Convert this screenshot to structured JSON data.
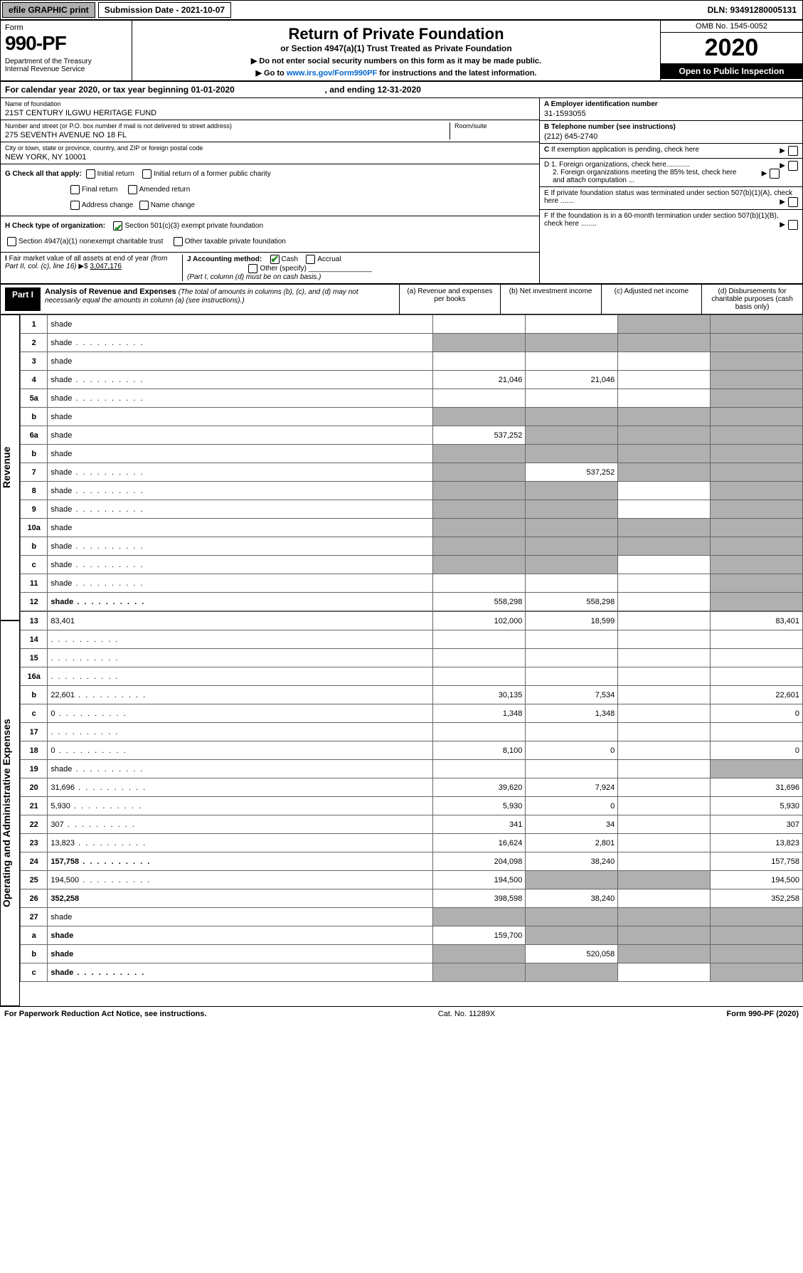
{
  "topbar": {
    "efile": "efile GRAPHIC print",
    "submission": "Submission Date - 2021-10-07",
    "dln": "DLN: 93491280005131"
  },
  "header": {
    "form_label": "Form",
    "form_num": "990-PF",
    "dept": "Department of the Treasury\nInternal Revenue Service",
    "title": "Return of Private Foundation",
    "subtitle": "or Section 4947(a)(1) Trust Treated as Private Foundation",
    "note1": "▶ Do not enter social security numbers on this form as it may be made public.",
    "note2_pre": "▶ Go to ",
    "note2_link": "www.irs.gov/Form990PF",
    "note2_post": " for instructions and the latest information.",
    "omb": "OMB No. 1545-0052",
    "year": "2020",
    "open": "Open to Public Inspection"
  },
  "cal": {
    "text_pre": "For calendar year 2020, or tax year beginning ",
    "begin": "01-01-2020",
    "mid": " , and ending ",
    "end": "12-31-2020"
  },
  "info": {
    "name_lbl": "Name of foundation",
    "name_val": "21ST CENTURY ILGWU HERITAGE FUND",
    "addr_lbl": "Number and street (or P.O. box number if mail is not delivered to street address)",
    "addr_val": "275 SEVENTH AVENUE NO 18 FL",
    "room_lbl": "Room/suite",
    "city_lbl": "City or town, state or province, country, and ZIP or foreign postal code",
    "city_val": "NEW YORK, NY  10001",
    "a_lbl": "A Employer identification number",
    "a_val": "31-1593055",
    "b_lbl": "B Telephone number (see instructions)",
    "b_val": "(212) 645-2740",
    "c_lbl": "C If exemption application is pending, check here",
    "g_lbl": "G Check all that apply:",
    "g_items": [
      "Initial return",
      "Initial return of a former public charity",
      "Final return",
      "Amended return",
      "Address change",
      "Name change"
    ],
    "d1": "D 1. Foreign organizations, check here............",
    "d2": "2. Foreign organizations meeting the 85% test, check here and attach computation ...",
    "h_lbl": "H Check type of organization:",
    "h1": "Section 501(c)(3) exempt private foundation",
    "h2": "Section 4947(a)(1) nonexempt charitable trust",
    "h3": "Other taxable private foundation",
    "e_lbl": "E  If private foundation status was terminated under section 507(b)(1)(A), check here .......",
    "i_lbl": "I Fair market value of all assets at end of year (from Part II, col. (c), line 16) ▶$  ",
    "i_val": "3,047,176",
    "j_lbl": "J Accounting method:",
    "j_cash": "Cash",
    "j_accrual": "Accrual",
    "j_other": "Other (specify)",
    "j_note": "(Part I, column (d) must be on cash basis.)",
    "f_lbl": "F  If the foundation is in a 60-month termination under section 507(b)(1)(B), check here ........"
  },
  "part1": {
    "label": "Part I",
    "title": "Analysis of Revenue and Expenses",
    "subtitle": "(The total of amounts in columns (b), (c), and (d) may not necessarily equal the amounts in column (a) (see instructions).)",
    "col_a": "(a)   Revenue and expenses per books",
    "col_b": "(b)  Net investment income",
    "col_c": "(c)  Adjusted net income",
    "col_d": "(d)  Disbursements for charitable purposes (cash basis only)"
  },
  "sections": {
    "revenue": "Revenue",
    "expenses": "Operating and Administrative Expenses"
  },
  "rows": [
    {
      "n": "1",
      "d": "shade",
      "a": "",
      "b": "",
      "c": "shade"
    },
    {
      "n": "2",
      "d": "shade",
      "a": "shade",
      "b": "shade",
      "c": "shade",
      "dots": 1
    },
    {
      "n": "3",
      "d": "shade",
      "a": "",
      "b": "",
      "c": ""
    },
    {
      "n": "4",
      "d": "shade",
      "a": "21,046",
      "b": "21,046",
      "c": "",
      "dots": 1
    },
    {
      "n": "5a",
      "d": "shade",
      "a": "",
      "b": "",
      "c": "",
      "dots": 1
    },
    {
      "n": "b",
      "d": "shade",
      "a": "shade",
      "b": "shade",
      "c": "shade"
    },
    {
      "n": "6a",
      "d": "shade",
      "a": "537,252",
      "b": "shade",
      "c": "shade"
    },
    {
      "n": "b",
      "d": "shade",
      "a": "shade",
      "b": "shade",
      "c": "shade"
    },
    {
      "n": "7",
      "d": "shade",
      "a": "shade",
      "b": "537,252",
      "c": "shade",
      "dots": 1
    },
    {
      "n": "8",
      "d": "shade",
      "a": "shade",
      "b": "shade",
      "c": "",
      "dots": 1
    },
    {
      "n": "9",
      "d": "shade",
      "a": "shade",
      "b": "shade",
      "c": "",
      "dots": 1
    },
    {
      "n": "10a",
      "d": "shade",
      "a": "shade",
      "b": "shade",
      "c": "shade"
    },
    {
      "n": "b",
      "d": "shade",
      "a": "shade",
      "b": "shade",
      "c": "shade",
      "dots": 1
    },
    {
      "n": "c",
      "d": "shade",
      "a": "shade",
      "b": "shade",
      "c": "",
      "dots": 1
    },
    {
      "n": "11",
      "d": "shade",
      "a": "",
      "b": "",
      "c": "",
      "dots": 1
    },
    {
      "n": "12",
      "d": "shade",
      "a": "558,298",
      "b": "558,298",
      "c": "",
      "bold": 1,
      "dots": 1
    }
  ],
  "rows2": [
    {
      "n": "13",
      "d": "83,401",
      "a": "102,000",
      "b": "18,599",
      "c": ""
    },
    {
      "n": "14",
      "d": "",
      "a": "",
      "b": "",
      "c": "",
      "dots": 1
    },
    {
      "n": "15",
      "d": "",
      "a": "",
      "b": "",
      "c": "",
      "dots": 1
    },
    {
      "n": "16a",
      "d": "",
      "a": "",
      "b": "",
      "c": "",
      "dots": 1
    },
    {
      "n": "b",
      "d": "22,601",
      "a": "30,135",
      "b": "7,534",
      "c": "",
      "dots": 1
    },
    {
      "n": "c",
      "d": "0",
      "a": "1,348",
      "b": "1,348",
      "c": "",
      "dots": 1
    },
    {
      "n": "17",
      "d": "",
      "a": "",
      "b": "",
      "c": "",
      "dots": 1
    },
    {
      "n": "18",
      "d": "0",
      "a": "8,100",
      "b": "0",
      "c": "",
      "dots": 1
    },
    {
      "n": "19",
      "d": "shade",
      "a": "",
      "b": "",
      "c": "",
      "dots": 1
    },
    {
      "n": "20",
      "d": "31,696",
      "a": "39,620",
      "b": "7,924",
      "c": "",
      "dots": 1
    },
    {
      "n": "21",
      "d": "5,930",
      "a": "5,930",
      "b": "0",
      "c": "",
      "dots": 1
    },
    {
      "n": "22",
      "d": "307",
      "a": "341",
      "b": "34",
      "c": "",
      "dots": 1
    },
    {
      "n": "23",
      "d": "13,823",
      "a": "16,624",
      "b": "2,801",
      "c": "",
      "dots": 1
    },
    {
      "n": "24",
      "d": "157,758",
      "a": "204,098",
      "b": "38,240",
      "c": "",
      "bold": 1,
      "dots": 1
    },
    {
      "n": "25",
      "d": "194,500",
      "a": "194,500",
      "b": "shade",
      "c": "shade",
      "dots": 1
    },
    {
      "n": "26",
      "d": "352,258",
      "a": "398,598",
      "b": "38,240",
      "c": "",
      "bold": 1
    },
    {
      "n": "27",
      "d": "shade",
      "a": "shade",
      "b": "shade",
      "c": "shade"
    },
    {
      "n": "a",
      "d": "shade",
      "a": "159,700",
      "b": "shade",
      "c": "shade",
      "bold": 1
    },
    {
      "n": "b",
      "d": "shade",
      "a": "shade",
      "b": "520,058",
      "c": "shade",
      "bold": 1
    },
    {
      "n": "c",
      "d": "shade",
      "a": "shade",
      "b": "shade",
      "c": "",
      "bold": 1,
      "dots": 1
    }
  ],
  "footer": {
    "left": "For Paperwork Reduction Act Notice, see instructions.",
    "mid": "Cat. No. 11289X",
    "right": "Form 990-PF (2020)"
  },
  "colors": {
    "shade": "#b0b0b0",
    "link": "#0066cc",
    "check": "#1a8a1a"
  }
}
